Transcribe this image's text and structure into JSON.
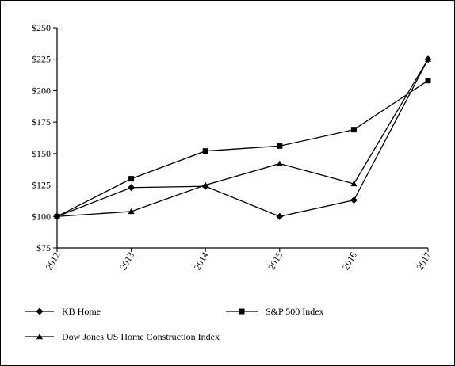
{
  "chart_data": {
    "type": "line",
    "categories": [
      "2012",
      "2013",
      "2014",
      "2015",
      "2016",
      "2017"
    ],
    "y_tick_labels": [
      "$75",
      "$100",
      "$125",
      "$150",
      "$175",
      "$200",
      "$225",
      "$250"
    ],
    "y_ticks": [
      75,
      100,
      125,
      150,
      175,
      200,
      225,
      250
    ],
    "ylim": [
      75,
      250
    ],
    "grid": false,
    "legend_placement": "bottom",
    "series": [
      {
        "name": "KB Home",
        "marker": "diamond",
        "values": [
          100,
          123,
          124,
          100,
          113,
          225
        ]
      },
      {
        "name": "S&P 500 Index",
        "marker": "square",
        "values": [
          100,
          130,
          152,
          156,
          169,
          208
        ]
      },
      {
        "name": "Dow Jones US Home Construction Index",
        "marker": "triangle",
        "values": [
          100,
          104,
          125,
          142,
          126,
          225
        ]
      }
    ],
    "colors": {
      "line": "#000000",
      "background": "#ffffff"
    }
  }
}
